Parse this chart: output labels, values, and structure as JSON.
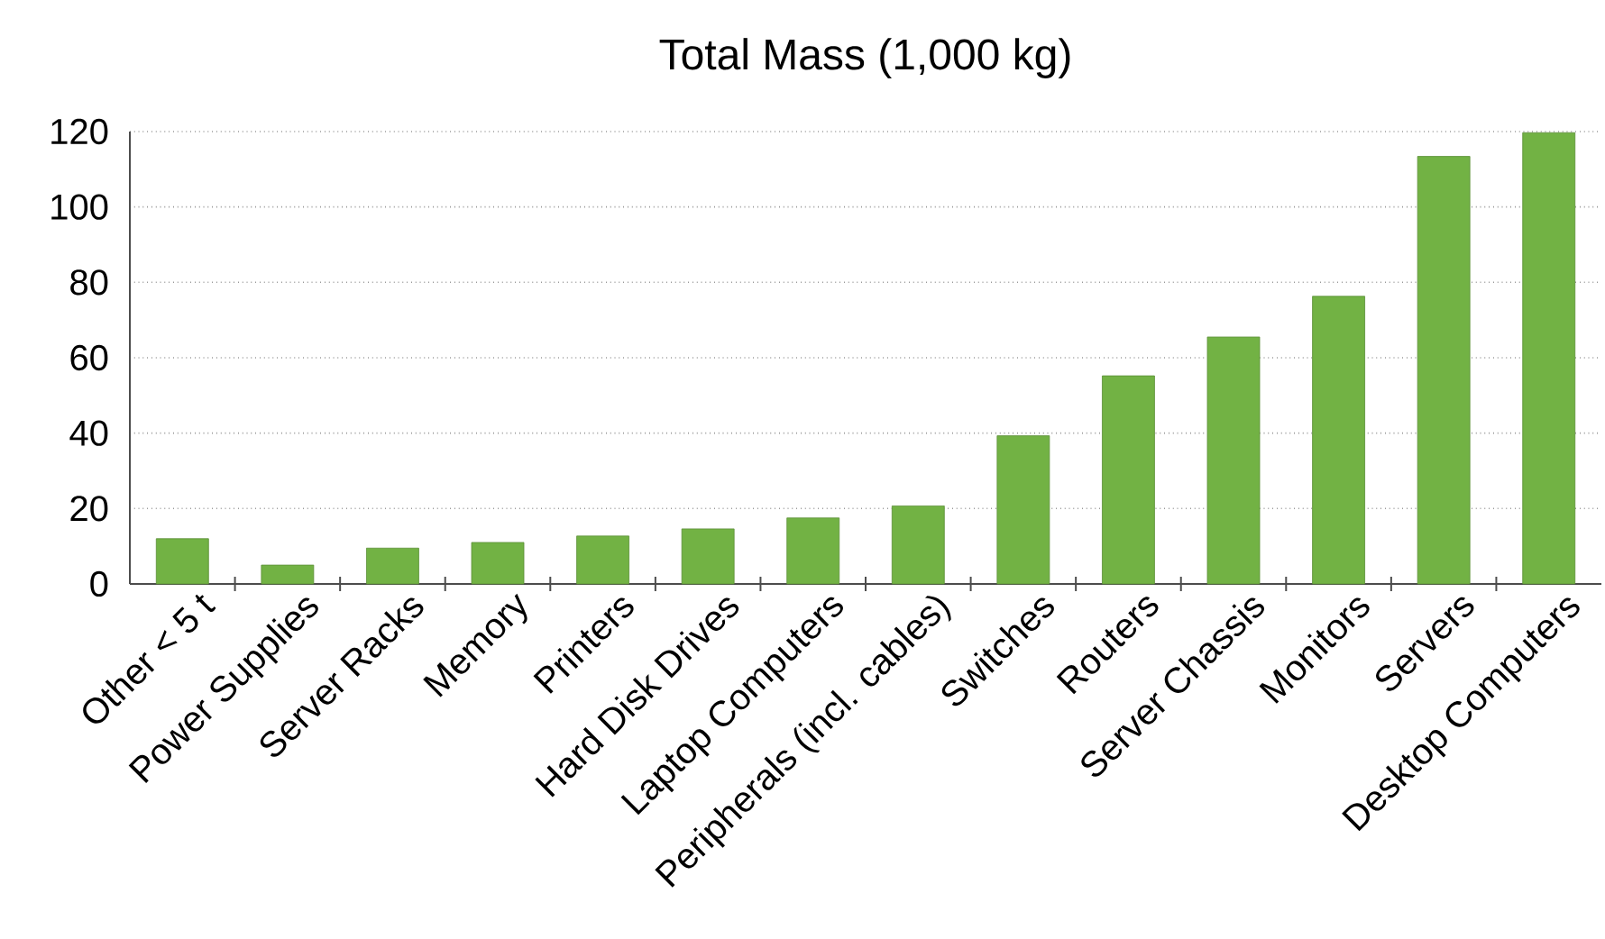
{
  "chart_data": {
    "type": "bar",
    "title": "Total Mass (1,000 kg)",
    "categories": [
      "Other < 5 t",
      "Power Supplies",
      "Server Racks",
      "Memory",
      "Printers",
      "Hard Disk Drives",
      "Laptop Computers",
      "Peripherals (incl. cables)",
      "Switches",
      "Routers",
      "Server Chassis",
      "Monitors",
      "Servers",
      "Desktop Computers"
    ],
    "values": [
      12,
      5,
      9.5,
      11,
      12.7,
      14.6,
      17.5,
      20.7,
      39.3,
      55.2,
      65.5,
      76.3,
      113.4,
      119.7
    ],
    "color": "#72b244",
    "ylim": [
      0,
      120
    ],
    "yticks": [
      0,
      20,
      40,
      60,
      80,
      100,
      120
    ],
    "grid": "y"
  }
}
